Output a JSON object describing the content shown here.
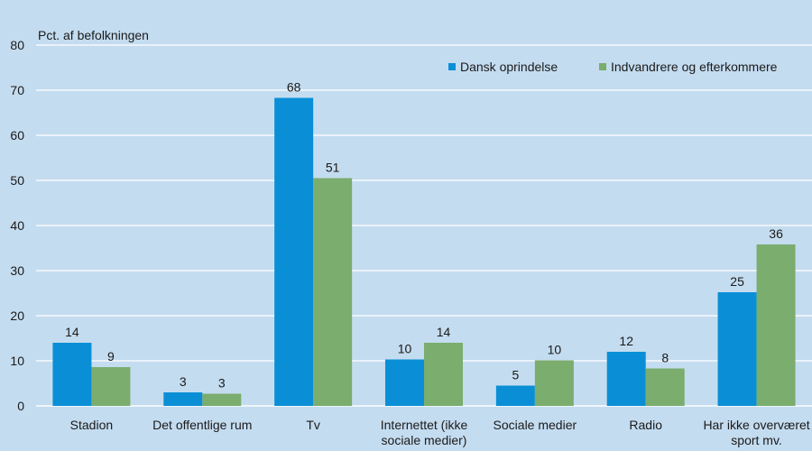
{
  "colors": {
    "background": "#c4dcf0",
    "grid": "#ffffff",
    "series1": "#0a8fd6",
    "series2": "#7aad6e"
  },
  "chart_data": {
    "type": "bar",
    "ylabel": "Pct. af befolkningen",
    "ylim": [
      0,
      80
    ],
    "yticks": [
      0,
      10,
      20,
      30,
      40,
      50,
      60,
      70,
      80
    ],
    "grid": true,
    "legend_position": "top-right",
    "categories": [
      [
        "Stadion"
      ],
      [
        "Det offentlige rum"
      ],
      [
        "Tv"
      ],
      [
        "Internettet (ikke",
        "sociale medier)"
      ],
      [
        "Sociale medier"
      ],
      [
        "Radio"
      ],
      [
        "Har ikke overværet",
        "sport mv."
      ]
    ],
    "series": [
      {
        "name": "Dansk oprindelse",
        "values": [
          14,
          3,
          68,
          10,
          5,
          12,
          25
        ],
        "bar_values": [
          14,
          3,
          68.3,
          10.3,
          4.5,
          12,
          25.2
        ]
      },
      {
        "name": "Indvandrere og efterkommere",
        "values": [
          9,
          3,
          51,
          14,
          10,
          8,
          36
        ],
        "bar_values": [
          8.6,
          2.7,
          50.5,
          14,
          10.1,
          8.3,
          35.8
        ]
      }
    ]
  }
}
